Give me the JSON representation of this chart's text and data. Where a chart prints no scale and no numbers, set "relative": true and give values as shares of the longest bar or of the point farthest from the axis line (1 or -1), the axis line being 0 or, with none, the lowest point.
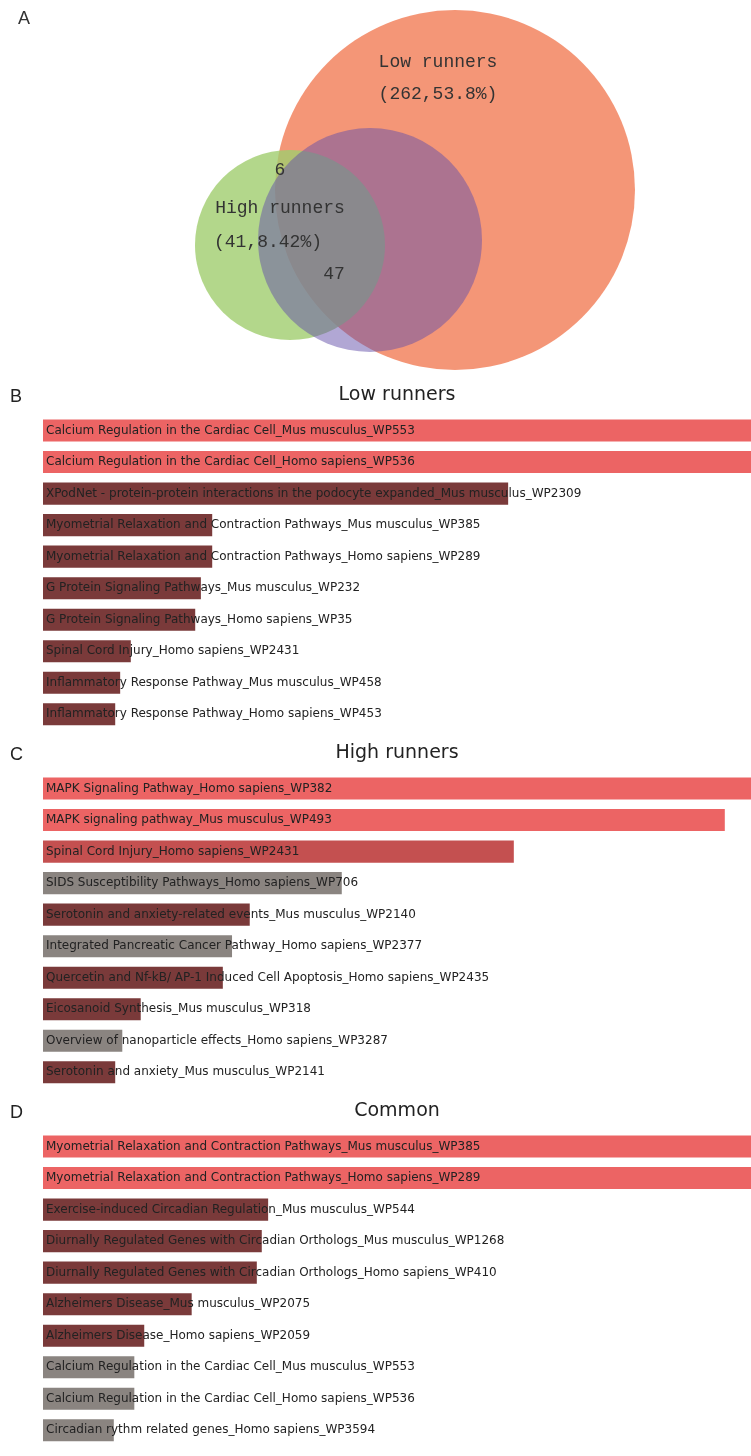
{
  "chart_data": [
    {
      "type": "other",
      "annotations": [
        "A",
        "Low runners",
        "(262,53.8%)",
        "High runners",
        "(41,8.42%)",
        "6",
        "47"
      ]
    },
    {
      "type": "bar",
      "orientation": "horizontal",
      "relative": true,
      "title": "Low runners",
      "annotations": [
        "B"
      ],
      "categories": [
        "Calcium Regulation in the Cardiac Cell_Mus musculus_WP553",
        "Calcium Regulation in the Cardiac Cell_Homo sapiens_WP536",
        "XPodNet - protein-protein interactions in the podocyte expanded_Mus musculus_WP2309",
        "Myometrial Relaxation and Contraction Pathways_Mus musculus_WP385",
        "Myometrial Relaxation and Contraction Pathways_Homo sapiens_WP289",
        "G Protein Signaling Pathways_Mus musculus_WP232",
        "G Protein Signaling Pathways_Homo sapiens_WP35",
        "Spinal Cord Injury_Homo sapiens_WP2431",
        "Inflammatory Response Pathway_Mus musculus_WP458",
        "Inflammatory Response Pathway_Homo sapiens_WP453"
      ],
      "values": [
        1,
        1,
        0.657,
        0.239,
        0.239,
        0.223,
        0.215,
        0.124,
        0.109,
        0.102
      ],
      "colors": [
        "#ec6464",
        "#ec6464",
        "#7a3a3a",
        "#7a3a3a",
        "#7a3a3a",
        "#7a3a3a",
        "#7a3a3a",
        "#7a3a3a",
        "#7a3a3a",
        "#7a3a3a"
      ]
    },
    {
      "type": "bar",
      "orientation": "horizontal",
      "relative": true,
      "title": "High runners",
      "annotations": [
        "C"
      ],
      "categories": [
        "MAPK Signaling Pathway_Homo sapiens_WP382",
        "MAPK signaling pathway_Mus musculus_WP493",
        "Spinal Cord Injury_Homo sapiens_WP2431",
        "SIDS Susceptibility Pathways_Homo sapiens_WP706",
        "Serotonin and anxiety-related events_Mus musculus_WP2140",
        "Integrated Pancreatic Cancer Pathway_Homo sapiens_WP2377",
        "Quercetin and Nf-kB/ AP-1 Induced Cell Apoptosis_Homo sapiens_WP2435",
        "Eicosanoid Synthesis_Mus musculus_WP318",
        "Overview of nanoparticle effects_Homo sapiens_WP3287",
        "Serotonin and anxiety_Mus musculus_WP2141"
      ],
      "values": [
        1,
        0.963,
        0.665,
        0.422,
        0.292,
        0.267,
        0.254,
        0.138,
        0.112,
        0.102
      ],
      "colors": [
        "#ec6464",
        "#ec6464",
        "#c45050",
        "#8a8480",
        "#7a3a3a",
        "#8a8480",
        "#7a3a3a",
        "#7a3a3a",
        "#8a8480",
        "#7a3a3a"
      ]
    },
    {
      "type": "bar",
      "orientation": "horizontal",
      "relative": true,
      "title": "Common",
      "annotations": [
        "D"
      ],
      "categories": [
        "Myometrial Relaxation and Contraction Pathways_Mus musculus_WP385",
        "Myometrial Relaxation and Contraction Pathways_Homo sapiens_WP289",
        "Exercise-induced Circadian Regulation_Mus musculus_WP544",
        "Diurnally Regulated Genes with Circadian Orthologs_Mus musculus_WP1268",
        "Diurnally Regulated Genes with Circadian Orthologs_Homo sapiens_WP410",
        "Alzheimers Disease_Mus musculus_WP2075",
        "Alzheimers Disease_Homo sapiens_WP2059",
        "Calcium Regulation in the Cardiac Cell_Mus musculus_WP553",
        "Calcium Regulation in the Cardiac Cell_Homo sapiens_WP536",
        "Circadian rythm related genes_Homo sapiens_WP3594"
      ],
      "values": [
        1,
        1,
        0.318,
        0.309,
        0.302,
        0.21,
        0.143,
        0.129,
        0.129,
        0.1
      ],
      "colors": [
        "#ec6464",
        "#ec6464",
        "#7a3a3a",
        "#7a3a3a",
        "#7a3a3a",
        "#7a3a3a",
        "#7a3a3a",
        "#8a8480",
        "#8a8480",
        "#8a8480"
      ]
    }
  ]
}
